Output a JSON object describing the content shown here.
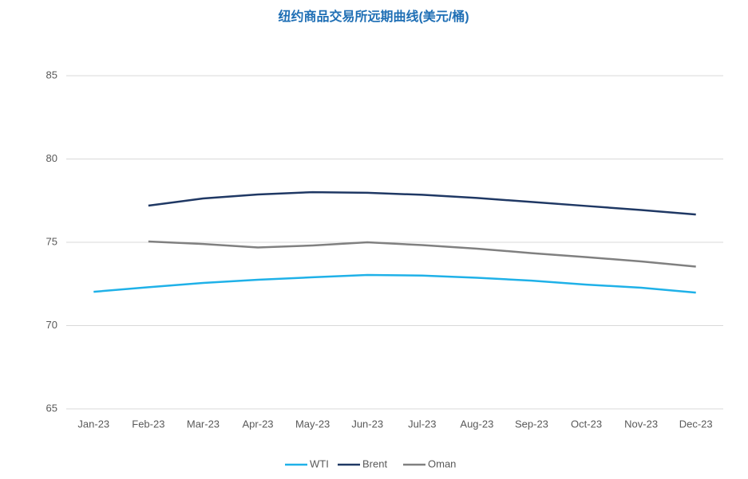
{
  "chart_data": {
    "type": "line",
    "title": "纽约商品交易所远期曲线(美元/桶)",
    "categories": [
      "Jan-23",
      "Feb-23",
      "Mar-23",
      "Apr-23",
      "May-23",
      "Jun-23",
      "Jul-23",
      "Aug-23",
      "Sep-23",
      "Oct-23",
      "Nov-23",
      "Dec-23"
    ],
    "series": [
      {
        "name": "WTI",
        "color": "#1fb1e8",
        "values": [
          72.03,
          72.3,
          72.56,
          72.75,
          72.9,
          73.04,
          73.0,
          72.87,
          72.7,
          72.46,
          72.27,
          71.98
        ]
      },
      {
        "name": "Brent",
        "color": "#1f3864",
        "values": [
          null,
          77.2,
          77.63,
          77.87,
          78.01,
          77.97,
          77.85,
          77.66,
          77.42,
          77.18,
          76.94,
          76.67
        ]
      },
      {
        "name": "Oman",
        "color": "#808080",
        "values": [
          null,
          75.05,
          74.9,
          74.69,
          74.81,
          75.0,
          74.83,
          74.62,
          74.35,
          74.11,
          73.85,
          73.54
        ]
      }
    ],
    "ylim": [
      65,
      85
    ],
    "yticks": [
      65,
      70,
      75,
      80,
      85
    ],
    "grid": true,
    "legend": "bottom"
  }
}
